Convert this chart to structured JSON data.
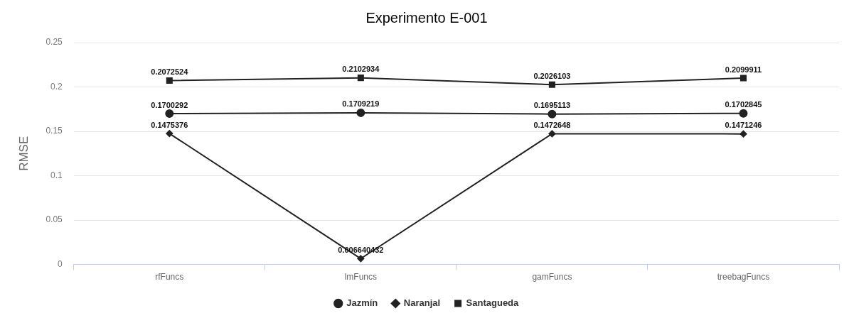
{
  "chart_data": {
    "type": "line",
    "title": "Experimento E-001",
    "ylabel": "RMSE",
    "categories": [
      "rfFuncs",
      "lmFuncs",
      "gamFuncs",
      "treebagFuncs"
    ],
    "series": [
      {
        "name": "Jazmín",
        "color": "#222222",
        "marker": "circle",
        "values": [
          0.1700292,
          0.1709219,
          0.1695113,
          0.1702845
        ]
      },
      {
        "name": "Naranjal",
        "color": "#222222",
        "marker": "diamond",
        "values": [
          0.1475376,
          0.006640432,
          0.1472648,
          0.1471246
        ]
      },
      {
        "name": "Santagueda",
        "color": "#222222",
        "marker": "square",
        "values": [
          0.2072524,
          0.2102934,
          0.2026103,
          0.2099911
        ]
      }
    ],
    "ylim": [
      0,
      0.25
    ],
    "yticks": [
      0,
      0.05,
      0.1,
      0.15,
      0.2,
      0.25
    ],
    "grid": "y",
    "legend": "bottom",
    "data_labels": true
  }
}
